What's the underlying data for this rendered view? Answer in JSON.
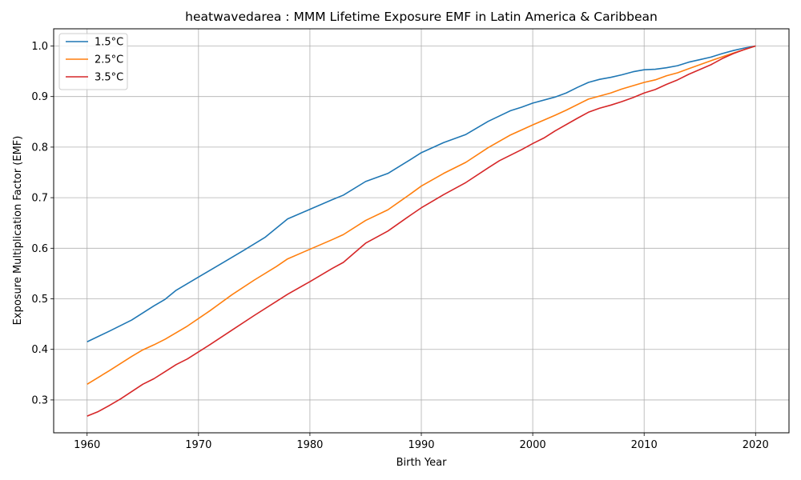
{
  "chart_data": {
    "type": "line",
    "title": "heatwavedarea : MMM Lifetime Exposure EMF in Latin America & Caribbean",
    "xlabel": "Birth Year",
    "ylabel": "Exposure Multiplication Factor (EMF)",
    "xlim": [
      1957,
      2023
    ],
    "ylim": [
      0.235,
      1.034
    ],
    "xticks": [
      1960,
      1970,
      1980,
      1990,
      2000,
      2010,
      2020
    ],
    "xtick_labels": [
      "1960",
      "1970",
      "1980",
      "1990",
      "2000",
      "2010",
      "2020"
    ],
    "yticks": [
      0.3,
      0.4,
      0.5,
      0.6,
      0.7,
      0.8,
      0.9,
      1.0
    ],
    "ytick_labels": [
      "0.3",
      "0.4",
      "0.5",
      "0.6",
      "0.7",
      "0.8",
      "0.9",
      "1.0"
    ],
    "grid": true,
    "legend_position": "top-left",
    "series": [
      {
        "name": "1.5°C",
        "color": "#1f77b4",
        "points": [
          [
            1960,
            0.415
          ],
          [
            1962,
            0.436
          ],
          [
            1964,
            0.458
          ],
          [
            1966,
            0.486
          ],
          [
            1967,
            0.499
          ],
          [
            1968,
            0.517
          ],
          [
            1970,
            0.543
          ],
          [
            1972,
            0.569
          ],
          [
            1974,
            0.595
          ],
          [
            1976,
            0.622
          ],
          [
            1978,
            0.658
          ],
          [
            1980,
            0.677
          ],
          [
            1982,
            0.696
          ],
          [
            1983,
            0.705
          ],
          [
            1985,
            0.732
          ],
          [
            1987,
            0.748
          ],
          [
            1989,
            0.775
          ],
          [
            1990,
            0.789
          ],
          [
            1992,
            0.809
          ],
          [
            1994,
            0.825
          ],
          [
            1996,
            0.851
          ],
          [
            1998,
            0.872
          ],
          [
            1999,
            0.879
          ],
          [
            2000,
            0.887
          ],
          [
            2002,
            0.899
          ],
          [
            2003,
            0.907
          ],
          [
            2004,
            0.918
          ],
          [
            2005,
            0.928
          ],
          [
            2006,
            0.934
          ],
          [
            2007,
            0.938
          ],
          [
            2008,
            0.943
          ],
          [
            2009,
            0.949
          ],
          [
            2010,
            0.953
          ],
          [
            2011,
            0.954
          ],
          [
            2012,
            0.957
          ],
          [
            2013,
            0.961
          ],
          [
            2014,
            0.968
          ],
          [
            2015,
            0.973
          ],
          [
            2016,
            0.978
          ],
          [
            2017,
            0.985
          ],
          [
            2018,
            0.991
          ],
          [
            2019,
            0.996
          ],
          [
            2020,
            1.0
          ]
        ]
      },
      {
        "name": "2.5°C",
        "color": "#ff7f0e",
        "points": [
          [
            1960,
            0.331
          ],
          [
            1962,
            0.358
          ],
          [
            1964,
            0.386
          ],
          [
            1965,
            0.399
          ],
          [
            1966,
            0.409
          ],
          [
            1967,
            0.42
          ],
          [
            1969,
            0.446
          ],
          [
            1971,
            0.476
          ],
          [
            1973,
            0.508
          ],
          [
            1975,
            0.537
          ],
          [
            1977,
            0.564
          ],
          [
            1978,
            0.579
          ],
          [
            1980,
            0.598
          ],
          [
            1982,
            0.617
          ],
          [
            1983,
            0.627
          ],
          [
            1985,
            0.655
          ],
          [
            1987,
            0.676
          ],
          [
            1989,
            0.707
          ],
          [
            1990,
            0.723
          ],
          [
            1992,
            0.748
          ],
          [
            1994,
            0.77
          ],
          [
            1996,
            0.799
          ],
          [
            1998,
            0.824
          ],
          [
            2000,
            0.844
          ],
          [
            2002,
            0.863
          ],
          [
            2003,
            0.873
          ],
          [
            2005,
            0.895
          ],
          [
            2007,
            0.907
          ],
          [
            2008,
            0.915
          ],
          [
            2010,
            0.928
          ],
          [
            2011,
            0.933
          ],
          [
            2012,
            0.941
          ],
          [
            2013,
            0.947
          ],
          [
            2014,
            0.955
          ],
          [
            2016,
            0.971
          ],
          [
            2018,
            0.986
          ],
          [
            2020,
            1.0
          ]
        ]
      },
      {
        "name": "3.5°C",
        "color": "#d62728",
        "points": [
          [
            1960,
            0.268
          ],
          [
            1961,
            0.277
          ],
          [
            1962,
            0.289
          ],
          [
            1963,
            0.302
          ],
          [
            1965,
            0.331
          ],
          [
            1966,
            0.342
          ],
          [
            1967,
            0.356
          ],
          [
            1968,
            0.37
          ],
          [
            1969,
            0.381
          ],
          [
            1971,
            0.409
          ],
          [
            1973,
            0.438
          ],
          [
            1975,
            0.467
          ],
          [
            1977,
            0.495
          ],
          [
            1978,
            0.509
          ],
          [
            1980,
            0.534
          ],
          [
            1982,
            0.56
          ],
          [
            1983,
            0.572
          ],
          [
            1985,
            0.61
          ],
          [
            1987,
            0.634
          ],
          [
            1989,
            0.665
          ],
          [
            1990,
            0.68
          ],
          [
            1992,
            0.706
          ],
          [
            1994,
            0.73
          ],
          [
            1996,
            0.759
          ],
          [
            1997,
            0.773
          ],
          [
            1999,
            0.795
          ],
          [
            2000,
            0.807
          ],
          [
            2001,
            0.818
          ],
          [
            2002,
            0.832
          ],
          [
            2004,
            0.857
          ],
          [
            2005,
            0.869
          ],
          [
            2006,
            0.877
          ],
          [
            2007,
            0.883
          ],
          [
            2008,
            0.89
          ],
          [
            2009,
            0.898
          ],
          [
            2010,
            0.907
          ],
          [
            2011,
            0.914
          ],
          [
            2012,
            0.924
          ],
          [
            2013,
            0.933
          ],
          [
            2014,
            0.944
          ],
          [
            2016,
            0.963
          ],
          [
            2017,
            0.975
          ],
          [
            2018,
            0.985
          ],
          [
            2019,
            0.993
          ],
          [
            2020,
            1.0
          ]
        ]
      }
    ]
  }
}
